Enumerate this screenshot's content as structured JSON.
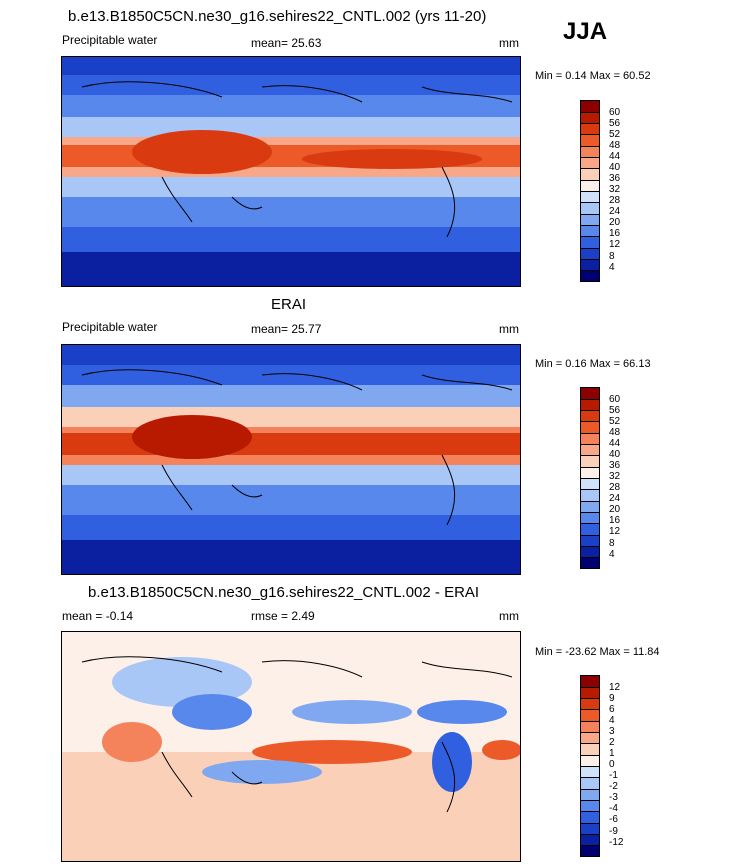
{
  "season": "JJA",
  "panels": [
    {
      "id": "model",
      "title": "b.e13.B1850C5CN.ne30_g16.sehires22_CNTL.002 (yrs 11-20)",
      "left_label": "Precipitable water",
      "mean_label": "mean=  25.63",
      "rmse_label": "",
      "units": "mm",
      "minmax": "Min =   0.14 Max =   60.52",
      "colorbar": [
        "60",
        "56",
        "52",
        "48",
        "44",
        "40",
        "36",
        "32",
        "28",
        "24",
        "20",
        "16",
        "12",
        "8",
        "4"
      ],
      "colors": [
        "#8b0000",
        "#b81a00",
        "#d93a10",
        "#ec5a2a",
        "#f4825a",
        "#f8a888",
        "#fbd0b8",
        "#fdf0e8",
        "#d0e2fb",
        "#a8c6f6",
        "#80a8f0",
        "#5888ec",
        "#3060e0",
        "#1a40c8",
        "#0a20a0",
        "#000070"
      ]
    },
    {
      "id": "obs",
      "title": "ERAI",
      "left_label": "Precipitable water",
      "mean_label": "mean=  25.77",
      "rmse_label": "",
      "units": "mm",
      "minmax": "Min =   0.16 Max =   66.13",
      "colorbar": [
        "60",
        "56",
        "52",
        "48",
        "44",
        "40",
        "36",
        "32",
        "28",
        "24",
        "20",
        "16",
        "12",
        "8",
        "4"
      ],
      "colors": [
        "#8b0000",
        "#b81a00",
        "#d93a10",
        "#ec5a2a",
        "#f4825a",
        "#f8a888",
        "#fbd0b8",
        "#fdf0e8",
        "#d0e2fb",
        "#a8c6f6",
        "#80a8f0",
        "#5888ec",
        "#3060e0",
        "#1a40c8",
        "#0a20a0",
        "#000070"
      ]
    },
    {
      "id": "diff",
      "title": "b.e13.B1850C5CN.ne30_g16.sehires22_CNTL.002 - ERAI",
      "left_label": "mean =  -0.14",
      "mean_label": "",
      "rmse_label": "rmse =   2.49",
      "units": "mm",
      "minmax": "Min = -23.62 Max =   11.84",
      "colorbar": [
        "12",
        "9",
        "6",
        "4",
        "3",
        "2",
        "1",
        "0",
        "-1",
        "-2",
        "-3",
        "-4",
        "-6",
        "-9",
        "-12"
      ],
      "colors": [
        "#8b0000",
        "#b81a00",
        "#d93a10",
        "#ec5a2a",
        "#f4825a",
        "#f8a888",
        "#fbd0b8",
        "#fdf0e8",
        "#d0e2fb",
        "#a8c6f6",
        "#80a8f0",
        "#5888ec",
        "#3060e0",
        "#1a40c8",
        "#0a20a0",
        "#000070"
      ]
    }
  ]
}
